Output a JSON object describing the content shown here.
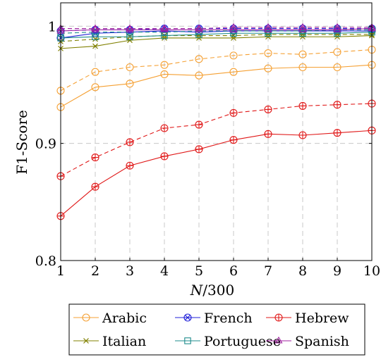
{
  "chart_data": {
    "type": "line",
    "xlabel_var": "N",
    "xlabel_rest": "/300",
    "ylabel": "F1-Score",
    "x": [
      1,
      2,
      3,
      4,
      5,
      6,
      7,
      8,
      9,
      10
    ],
    "xlim": [
      1,
      10
    ],
    "ylim": [
      0.8,
      1.02
    ],
    "yticks": [
      0.8,
      0.9,
      1
    ],
    "ytick_labels": [
      "0.8",
      "0.9",
      "1"
    ],
    "grid": true,
    "legend_position": "bottom",
    "series": [
      {
        "name": "Arabic",
        "color": "#f5a033",
        "marker": "circle",
        "style": "solid",
        "values": [
          0.931,
          0.948,
          0.951,
          0.959,
          0.958,
          0.961,
          0.964,
          0.965,
          0.965,
          0.967
        ]
      },
      {
        "name": "Arabic",
        "color": "#f5a033",
        "marker": "circle",
        "style": "dashed",
        "legend": false,
        "values": [
          0.945,
          0.961,
          0.965,
          0.967,
          0.972,
          0.975,
          0.977,
          0.976,
          0.978,
          0.98
        ]
      },
      {
        "name": "French",
        "color": "#2020d8",
        "marker": "otimes",
        "style": "solid",
        "values": [
          0.99,
          0.994,
          0.995,
          0.996,
          0.995,
          0.996,
          0.996,
          0.996,
          0.996,
          0.996
        ]
      },
      {
        "name": "French",
        "color": "#2020d8",
        "marker": "otimes",
        "style": "dashed",
        "legend": false,
        "values": [
          0.996,
          0.997,
          0.997,
          0.998,
          0.998,
          0.998,
          0.998,
          0.998,
          0.998,
          0.998
        ]
      },
      {
        "name": "Hebrew",
        "color": "#e01818",
        "marker": "oplus",
        "style": "solid",
        "values": [
          0.838,
          0.863,
          0.881,
          0.889,
          0.895,
          0.903,
          0.908,
          0.907,
          0.909,
          0.911
        ]
      },
      {
        "name": "Hebrew",
        "color": "#e01818",
        "marker": "oplus",
        "style": "dashed",
        "legend": false,
        "values": [
          0.872,
          0.888,
          0.901,
          0.913,
          0.916,
          0.926,
          0.929,
          0.932,
          0.933,
          0.934
        ]
      },
      {
        "name": "Italian",
        "color": "#808000",
        "marker": "x",
        "style": "solid",
        "values": [
          0.981,
          0.983,
          0.988,
          0.99,
          0.99,
          0.99,
          0.991,
          0.991,
          0.991,
          0.992
        ]
      },
      {
        "name": "Italian",
        "color": "#808000",
        "marker": "x",
        "style": "dashed",
        "legend": false,
        "values": [
          0.987,
          0.989,
          0.991,
          0.992,
          0.992,
          0.992,
          0.993,
          0.993,
          0.993,
          0.993
        ]
      },
      {
        "name": "Portuguese",
        "color": "#1e8c8c",
        "marker": "square",
        "style": "solid",
        "values": [
          0.99,
          0.991,
          0.991,
          0.992,
          0.993,
          0.994,
          0.994,
          0.994,
          0.994,
          0.995
        ]
      },
      {
        "name": "Portuguese",
        "color": "#1e8c8c",
        "marker": "square",
        "style": "dashed",
        "legend": false,
        "values": [
          0.994,
          0.995,
          0.995,
          0.995,
          0.996,
          0.996,
          0.996,
          0.996,
          0.997,
          0.997
        ]
      },
      {
        "name": "Spanish",
        "color": "#a020a0",
        "marker": "triangle",
        "style": "solid",
        "values": [
          0.996,
          0.997,
          0.997,
          0.997,
          0.997,
          0.997,
          0.997,
          0.997,
          0.997,
          0.998
        ]
      },
      {
        "name": "Spanish",
        "color": "#a020a0",
        "marker": "triangle",
        "style": "dashed",
        "legend": false,
        "values": [
          0.998,
          0.998,
          0.998,
          0.998,
          0.998,
          0.999,
          0.999,
          0.999,
          0.999,
          0.999
        ]
      }
    ]
  }
}
